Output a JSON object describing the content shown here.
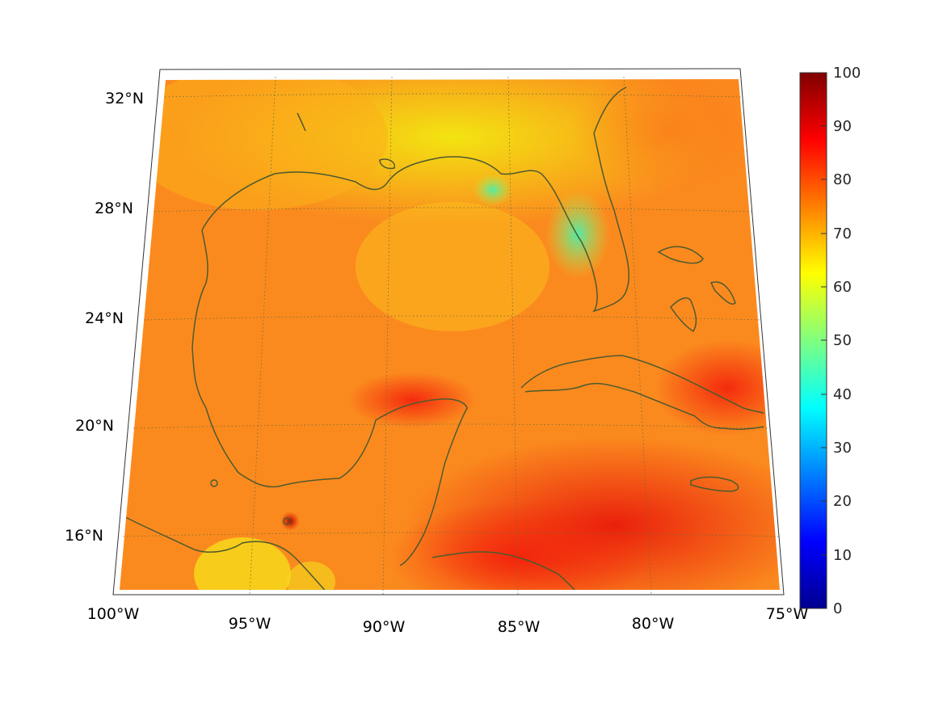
{
  "map": {
    "lat_labels": [
      "32°N",
      "28°N",
      "24°N",
      "20°N",
      "16°N"
    ],
    "lon_labels": [
      "100°W",
      "95°W",
      "90°W",
      "85°W",
      "80°W",
      "75°W"
    ],
    "lat_values": [
      32,
      28,
      24,
      20,
      16
    ],
    "lon_values": [
      -100,
      -95,
      -90,
      -85,
      -80,
      -75
    ],
    "graticule": "dotted",
    "coastline_color": "#4d5a2f"
  },
  "colorbar": {
    "ticks": [
      "100",
      "90",
      "80",
      "70",
      "60",
      "50",
      "40",
      "30",
      "20",
      "10",
      "0"
    ],
    "range": [
      0,
      100
    ],
    "colormap": "jet"
  }
}
